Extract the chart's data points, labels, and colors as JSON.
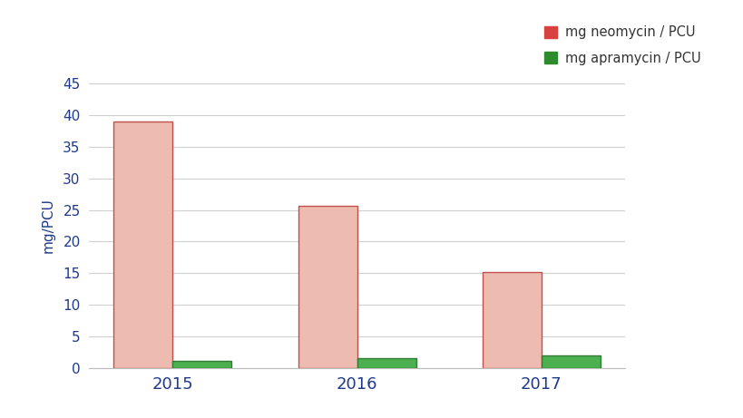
{
  "years": [
    "2015",
    "2016",
    "2017"
  ],
  "neomycin": [
    39.0,
    25.7,
    15.1
  ],
  "apramycin": [
    1.1,
    1.5,
    2.0
  ],
  "neomycin_color": "#edbbb0",
  "neomycin_edge_color": "#c0504d",
  "apramycin_color": "#4caf50",
  "apramycin_edge_color": "#2e7d32",
  "ylabel": "mg/PCU",
  "ylim": [
    0,
    45
  ],
  "yticks": [
    0,
    5,
    10,
    15,
    20,
    25,
    30,
    35,
    40,
    45
  ],
  "legend_neomycin": "mg neomycin / PCU",
  "legend_apramycin": "mg apramycin / PCU",
  "bar_width": 0.32,
  "background_color": "#ffffff",
  "axis_label_color": "#1f3a8a",
  "tick_color": "#1f3a8a",
  "grid_color": "#d0d0d0",
  "legend_marker_neo": "#d94040",
  "legend_marker_apr": "#2d8a2d"
}
